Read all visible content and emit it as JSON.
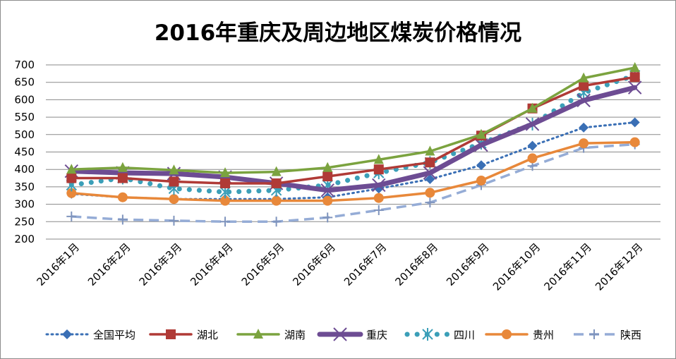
{
  "chart_data": {
    "type": "line",
    "title": "2016年重庆及周边地区煤炭价格情况",
    "categories": [
      "2016年1月",
      "2016年2月",
      "2016年3月",
      "2016年4月",
      "2016年5月",
      "2016年6月",
      "2016年7月",
      "2016年8月",
      "2016年9月",
      "2016年10月",
      "2016年11月",
      "2016年12月"
    ],
    "ylim": [
      200,
      700
    ],
    "yticks": [
      200,
      250,
      300,
      350,
      400,
      450,
      500,
      550,
      600,
      650,
      700
    ],
    "grid": true,
    "legend": "bottom",
    "series": [
      {
        "name": "全国平均",
        "color": "#3a6fb5",
        "marker": "diamond",
        "dash": "dot",
        "values": [
          330,
          320,
          315,
          315,
          315,
          320,
          345,
          372,
          412,
          468,
          520,
          535
        ]
      },
      {
        "name": "湖北",
        "color": "#b03a36",
        "marker": "square",
        "dash": "solid",
        "values": [
          375,
          375,
          365,
          360,
          360,
          380,
          400,
          420,
          497,
          575,
          640,
          665
        ]
      },
      {
        "name": "湖南",
        "color": "#7ba33f",
        "marker": "triangle",
        "dash": "solid",
        "values": [
          400,
          405,
          398,
          390,
          393,
          405,
          428,
          452,
          500,
          575,
          662,
          692
        ]
      },
      {
        "name": "重庆",
        "color": "#6d4c93",
        "marker": "x",
        "dash": "thick",
        "values": [
          395,
          390,
          388,
          378,
          360,
          340,
          355,
          390,
          470,
          530,
          598,
          635
        ]
      },
      {
        "name": "四川",
        "color": "#3b9fb8",
        "marker": "star",
        "dash": "circledot",
        "values": [
          355,
          375,
          345,
          335,
          340,
          355,
          390,
          420,
          475,
          530,
          620,
          670
        ]
      },
      {
        "name": "贵州",
        "color": "#e8883a",
        "marker": "circle",
        "dash": "solid",
        "values": [
          332,
          320,
          315,
          310,
          310,
          310,
          318,
          333,
          368,
          432,
          475,
          478
        ]
      },
      {
        "name": "陕西",
        "color": "#95acd6",
        "marker": "plus",
        "dash": "dash",
        "values": [
          265,
          256,
          253,
          250,
          250,
          262,
          283,
          305,
          355,
          410,
          462,
          472
        ]
      }
    ]
  }
}
